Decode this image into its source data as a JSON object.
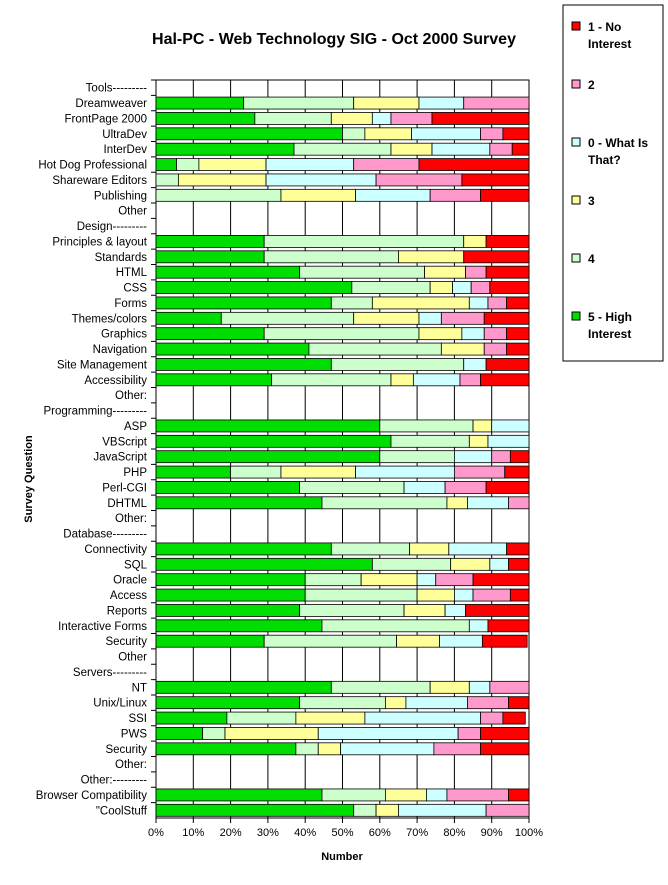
{
  "chart_data": {
    "type": "bar",
    "stacked": "percent",
    "orientation": "horizontal",
    "title": "Hal-PC - Web Technology SIG - Oct 2000 Survey",
    "xlabel": "Number",
    "ylabel": "Survey Question",
    "xlim": [
      0,
      100
    ],
    "x_ticks": [
      "0%",
      "10%",
      "20%",
      "30%",
      "40%",
      "50%",
      "60%",
      "70%",
      "80%",
      "90%",
      "100%"
    ],
    "grid": "vertical",
    "legend_position": "right",
    "categories": [
      "Tools---------",
      "Dreamweaver",
      "FrontPage 2000",
      "UltraDev",
      "InterDev",
      "Hot Dog Professional",
      "Shareware Editors",
      "Publishing",
      "Other",
      "Design---------",
      "Principles & layout",
      "Standards",
      "HTML",
      "CSS",
      "Forms",
      "Themes/colors",
      "Graphics",
      "Navigation",
      "Site Management",
      "Accessibility",
      "Other:",
      "Programming---------",
      "ASP",
      "VBScript",
      "JavaScript",
      "PHP",
      "Perl-CGI",
      "DHTML",
      "Other:",
      "Database---------",
      "Connectivity",
      "SQL",
      "Oracle",
      "Access",
      "Reports",
      "Interactive Forms",
      "Security",
      "Other",
      "Servers---------",
      "NT",
      "Unix/Linux",
      "SSI",
      "PWS",
      "Security",
      "Other:",
      "Other:---------",
      "Browser Compatibility",
      "\"CoolStuff"
    ],
    "series": [
      {
        "name": "5 - High Interest",
        "color": "#00dd00",
        "values": [
          0,
          23.5,
          26.5,
          50,
          37,
          5.5,
          0,
          0,
          0,
          0,
          29,
          29,
          38.5,
          52.5,
          47,
          17.5,
          29,
          41,
          47,
          31,
          0,
          0,
          60,
          63,
          60,
          20,
          38.5,
          44.5,
          0,
          0,
          47,
          58,
          40,
          40,
          38.5,
          44.5,
          29,
          0,
          0,
          47,
          38.5,
          19,
          12.5,
          37.5,
          0,
          0,
          44.5,
          53
        ]
      },
      {
        "name": "4",
        "color": "#ccffcc",
        "values": [
          0,
          29.5,
          20.5,
          6,
          26,
          6,
          6,
          33.5,
          0,
          0,
          53.5,
          36,
          33.5,
          21,
          11,
          35.5,
          41.5,
          35.5,
          35.5,
          32,
          0,
          0,
          25,
          21,
          20,
          13.5,
          28,
          33.5,
          0,
          0,
          21,
          21,
          15,
          30,
          28,
          39.5,
          35.5,
          0,
          0,
          26.5,
          23,
          18.5,
          6,
          6,
          0,
          0,
          17,
          6
        ]
      },
      {
        "name": "3",
        "color": "#ffff99",
        "values": [
          0,
          17.5,
          11,
          12.5,
          11,
          18,
          23.5,
          20,
          0,
          0,
          6,
          17.5,
          11,
          6,
          26,
          17.5,
          11.5,
          11.5,
          0,
          6,
          0,
          0,
          5,
          5,
          0,
          20,
          0,
          5.5,
          0,
          0,
          10.5,
          10.5,
          15,
          10,
          11,
          0,
          11.5,
          0,
          0,
          10.5,
          5.5,
          18.5,
          25,
          6,
          0,
          0,
          11,
          6
        ]
      },
      {
        "name": "0 - What Is That?",
        "color": "#ccffff",
        "values": [
          0,
          12,
          5,
          18.5,
          15.5,
          23.5,
          29.5,
          20,
          0,
          0,
          0,
          0,
          0,
          5,
          5,
          6,
          6,
          0,
          6,
          12.5,
          0,
          0,
          10,
          11,
          10,
          26.5,
          11,
          11,
          0,
          0,
          15.5,
          5,
          5,
          5,
          5.5,
          5,
          11.5,
          0,
          0,
          5.5,
          16.5,
          31,
          37.5,
          25,
          0,
          0,
          5.5,
          23.5
        ]
      },
      {
        "name": "2",
        "color": "#ff99cc",
        "values": [
          0,
          17.5,
          11,
          6,
          6,
          17.5,
          23,
          13.5,
          0,
          0,
          0,
          0,
          5.5,
          5,
          5,
          11.5,
          6,
          6,
          0,
          5.5,
          0,
          0,
          0,
          0,
          5,
          13.5,
          11,
          5.5,
          0,
          0,
          0,
          0,
          10,
          10,
          0,
          0,
          0,
          0,
          0,
          10.5,
          11,
          6,
          6,
          12.5,
          0,
          0,
          16.5,
          11.5
        ]
      },
      {
        "name": "1 - No Interest",
        "color": "#ff0000",
        "values": [
          0,
          0,
          26,
          7,
          4.5,
          29.5,
          18,
          13,
          0,
          0,
          11.5,
          17.5,
          11.5,
          10.5,
          6,
          12,
          6,
          6,
          11.5,
          13,
          0,
          0,
          0,
          0,
          5,
          6.5,
          11.5,
          0,
          0,
          0,
          6,
          5.5,
          15,
          5,
          17,
          11,
          12,
          0,
          0,
          0,
          5.5,
          6,
          13,
          13,
          0,
          0,
          5.5,
          0
        ]
      }
    ]
  }
}
